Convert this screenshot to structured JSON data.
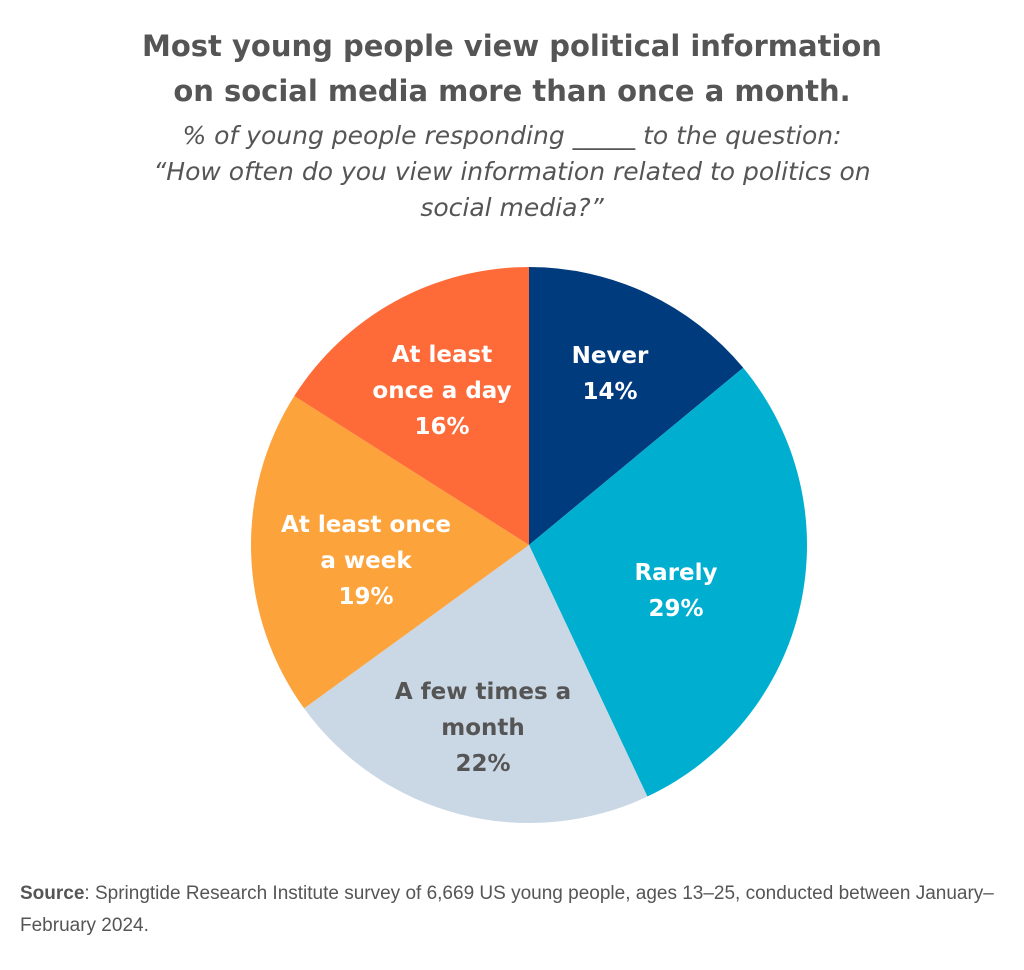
{
  "chart_data": {
    "type": "pie",
    "title": [
      "Most young people view political information",
      "on social media more than once a month."
    ],
    "subtitle": [
      "% of young people responding _____ to the question:",
      "“How often do you view information related to politics on",
      "social media?”"
    ],
    "start": "top",
    "direction": "clockwise",
    "slices": [
      {
        "label": [
          "Never"
        ],
        "value": 14,
        "value_label": "14%",
        "color": "#003b7e",
        "text_color": "#ffffff"
      },
      {
        "label": [
          "Rarely"
        ],
        "value": 29,
        "value_label": "29%",
        "color": "#00afcf",
        "text_color": "#ffffff"
      },
      {
        "label": [
          "A few times a",
          "month"
        ],
        "value": 22,
        "value_label": "22%",
        "color": "#cad7e4",
        "text_color": "#555555"
      },
      {
        "label": [
          "At least once",
          "a week"
        ],
        "value": 19,
        "value_label": "19%",
        "color": "#fca33c",
        "text_color": "#ffffff"
      },
      {
        "label": [
          "At least",
          "once a day"
        ],
        "value": 16,
        "value_label": "16%",
        "color": "#ff6a39",
        "text_color": "#ffffff"
      }
    ]
  },
  "source": {
    "label": "Source",
    "text": ": Springtide Research Institute survey of 6,669 US young people, ages 13–25, conducted between January–February 2024."
  }
}
